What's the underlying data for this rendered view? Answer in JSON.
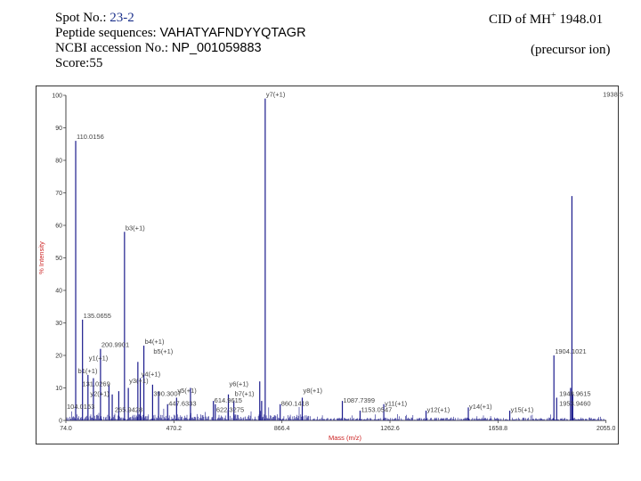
{
  "header": {
    "spot_label": "Spot No.:",
    "spot_value": "23-2",
    "peptide_label": "Peptide sequences:",
    "peptide_value": "VAHATYAFNDYYQTAGR",
    "ncbi_label": "NCBI accession No.:",
    "ncbi_value": "NP_001059883",
    "score_label": "Score:",
    "score_value": "55",
    "cid_prefix": "CID of MH",
    "cid_sup": "+",
    "cid_value": "1948.01",
    "precursor_note": "(precursor ion)"
  },
  "colors": {
    "spectrum": "#1a1a8c",
    "axis_title": "#cc2222",
    "accent_blue": "#1a2f8a"
  },
  "chart_data": {
    "type": "bar",
    "title": "",
    "xlabel": "Mass (m/z)",
    "ylabel": "% Intensity",
    "xlim": [
      74.0,
      2056.0
    ],
    "ylim": [
      0,
      100
    ],
    "x_ticks": [
      74.0,
      470.2,
      866.4,
      1262.6,
      1658.8,
      2055.0
    ],
    "x_tick_labels": [
      "74.0",
      "470.2",
      "866.4",
      "1262.6",
      "1658.8",
      "2055.0"
    ],
    "y_ticks": [
      0,
      10,
      20,
      30,
      40,
      50,
      60,
      70,
      80,
      90,
      100
    ],
    "y_tick_labels": [
      "0",
      "10",
      "20",
      "30",
      "40",
      "50",
      "60",
      "70",
      "80",
      "90",
      "100"
    ],
    "peaks": [
      {
        "mz": 110.0,
        "intensity": 86
      },
      {
        "mz": 135.0,
        "intensity": 31
      },
      {
        "mz": 155.0,
        "intensity": 14
      },
      {
        "mz": 175.0,
        "intensity": 13
      },
      {
        "mz": 201.0,
        "intensity": 22
      },
      {
        "mz": 232.0,
        "intensity": 11
      },
      {
        "mz": 244.0,
        "intensity": 8
      },
      {
        "mz": 268.0,
        "intensity": 9
      },
      {
        "mz": 289.0,
        "intensity": 58
      },
      {
        "mz": 303.0,
        "intensity": 10
      },
      {
        "mz": 338.0,
        "intensity": 18
      },
      {
        "mz": 347.0,
        "intensity": 13
      },
      {
        "mz": 360.0,
        "intensity": 23
      },
      {
        "mz": 392.0,
        "intensity": 11
      },
      {
        "mz": 414.0,
        "intensity": 9
      },
      {
        "mz": 447.0,
        "intensity": 5
      },
      {
        "mz": 480.0,
        "intensity": 7
      },
      {
        "mz": 531.0,
        "intensity": 10
      },
      {
        "mz": 615.0,
        "intensity": 6
      },
      {
        "mz": 622.0,
        "intensity": 5
      },
      {
        "mz": 670.0,
        "intensity": 8
      },
      {
        "mz": 690.0,
        "intensity": 6
      },
      {
        "mz": 785.0,
        "intensity": 12
      },
      {
        "mz": 792.0,
        "intensity": 6
      },
      {
        "mz": 805.0,
        "intensity": 99
      },
      {
        "mz": 860.0,
        "intensity": 5
      },
      {
        "mz": 941.0,
        "intensity": 7
      },
      {
        "mz": 1088.0,
        "intensity": 6
      },
      {
        "mz": 1153.0,
        "intensity": 3
      },
      {
        "mz": 1240.0,
        "intensity": 5
      },
      {
        "mz": 1395.0,
        "intensity": 3
      },
      {
        "mz": 1550.0,
        "intensity": 4
      },
      {
        "mz": 1702.0,
        "intensity": 3
      },
      {
        "mz": 1864.0,
        "intensity": 20
      },
      {
        "mz": 1874.0,
        "intensity": 7
      },
      {
        "mz": 1925.0,
        "intensity": 10
      },
      {
        "mz": 1930.0,
        "intensity": 69
      },
      {
        "mz": 1933.0,
        "intensity": 8
      }
    ],
    "annotations": [
      {
        "text": "110.0156",
        "mz": 110.0,
        "intensity": 86
      },
      {
        "text": "b3(+1)",
        "mz": 289.0,
        "intensity": 58
      },
      {
        "text": "y7(+1)",
        "mz": 805.0,
        "intensity": 99
      },
      {
        "text": "1938.5",
        "mz": 2040.0,
        "intensity": 99
      },
      {
        "text": "135.0655",
        "mz": 135.0,
        "intensity": 31
      },
      {
        "text": "200.9901",
        "mz": 201.0,
        "intensity": 22
      },
      {
        "text": "b4(+1)",
        "mz": 360.0,
        "intensity": 23
      },
      {
        "text": "b5(+1)",
        "mz": 392.0,
        "intensity": 20
      },
      {
        "text": "y1(+1)",
        "mz": 155.0,
        "intensity": 18
      },
      {
        "text": "b1(+1)",
        "mz": 115.0,
        "intensity": 14
      },
      {
        "text": "y4(+1)",
        "mz": 347.0,
        "intensity": 13
      },
      {
        "text": "y3(+1)",
        "mz": 303.0,
        "intensity": 11
      },
      {
        "text": "131.0269",
        "mz": 131.0,
        "intensity": 10
      },
      {
        "text": "y2(+1)",
        "mz": 160.0,
        "intensity": 7
      },
      {
        "text": "390.3007",
        "mz": 392.0,
        "intensity": 7
      },
      {
        "text": "y5(+1)",
        "mz": 480.0,
        "intensity": 8
      },
      {
        "text": "y6(+1)",
        "mz": 670.0,
        "intensity": 10
      },
      {
        "text": "b7(+1)",
        "mz": 690.0,
        "intensity": 7
      },
      {
        "text": "y8(+1)",
        "mz": 941.0,
        "intensity": 8
      },
      {
        "text": "614.9615",
        "mz": 615.0,
        "intensity": 5
      },
      {
        "text": "447.6333",
        "mz": 447.0,
        "intensity": 4
      },
      {
        "text": "622.3275",
        "mz": 622.0,
        "intensity": 2
      },
      {
        "text": "860.1418",
        "mz": 860.0,
        "intensity": 4
      },
      {
        "text": "1087.7399",
        "mz": 1088.0,
        "intensity": 5
      },
      {
        "text": "1153.0547",
        "mz": 1153.0,
        "intensity": 2
      },
      {
        "text": "y11(+1)",
        "mz": 1240.0,
        "intensity": 4
      },
      {
        "text": "y12(+1)",
        "mz": 1395.0,
        "intensity": 2
      },
      {
        "text": "y14(+1)",
        "mz": 1550.0,
        "intensity": 3
      },
      {
        "text": "y15(+1)",
        "mz": 1702.0,
        "intensity": 2
      },
      {
        "text": "1904.1021",
        "mz": 1864.0,
        "intensity": 20
      },
      {
        "text": "1948.9615",
        "mz": 1880.0,
        "intensity": 7
      },
      {
        "text": "1953.9460",
        "mz": 1880.0,
        "intensity": 4
      },
      {
        "text": "104.0153",
        "mz": 74.0,
        "intensity": 3
      },
      {
        "text": "265.9428",
        "mz": 250.0,
        "intensity": 2
      }
    ]
  }
}
